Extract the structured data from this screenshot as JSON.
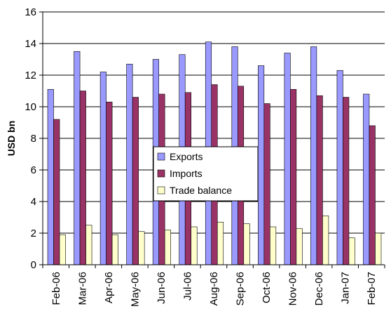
{
  "chart_data": {
    "type": "bar",
    "title": "",
    "xlabel": "",
    "ylabel": "USD bn",
    "ylim": [
      0,
      16
    ],
    "yticks": [
      0,
      2,
      4,
      6,
      8,
      10,
      12,
      14,
      16
    ],
    "grid": "horizontal major gridlines",
    "legend": "center-right",
    "categories": [
      "Feb-06",
      "Mar-06",
      "Apr-06",
      "May-06",
      "Jun-06",
      "Jul-06",
      "Aug-06",
      "Sep-06",
      "Oct-06",
      "Nov-06",
      "Dec-06",
      "Jan-07",
      "Feb-07"
    ],
    "series": [
      {
        "name": "Exports",
        "color": "#9999ff",
        "values": [
          11.1,
          13.5,
          12.2,
          12.7,
          13.0,
          13.3,
          14.1,
          13.8,
          12.6,
          13.4,
          13.8,
          12.3,
          10.8
        ]
      },
      {
        "name": "Imports",
        "color": "#993366",
        "values": [
          9.2,
          11.0,
          10.3,
          10.6,
          10.8,
          10.9,
          11.4,
          11.3,
          10.2,
          11.1,
          10.7,
          10.6,
          8.8
        ]
      },
      {
        "name": "Trade balance",
        "color": "#ffffcc",
        "values": [
          1.9,
          2.5,
          1.9,
          2.1,
          2.2,
          2.4,
          2.7,
          2.6,
          2.4,
          2.3,
          3.1,
          1.7,
          2.0
        ]
      }
    ]
  }
}
